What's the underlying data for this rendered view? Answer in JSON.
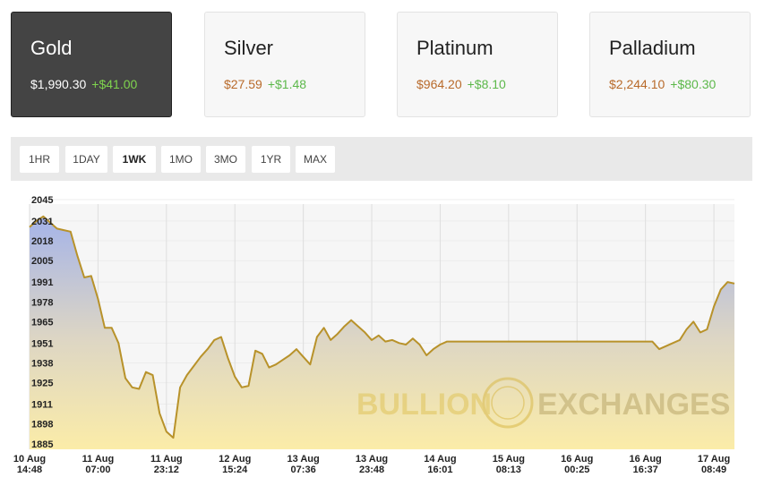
{
  "metals": [
    {
      "name": "Gold",
      "price": "$1,990.30",
      "change": "+$41.00"
    },
    {
      "name": "Silver",
      "price": "$27.59",
      "change": "+$1.48"
    },
    {
      "name": "Platinum",
      "price": "$964.20",
      "change": "+$8.10"
    },
    {
      "name": "Palladium",
      "price": "$2,244.10",
      "change": "+$80.30"
    }
  ],
  "selected_metal_index": 0,
  "ranges": [
    "1HR",
    "1DAY",
    "1WK",
    "1MO",
    "3MO",
    "1YR",
    "MAX"
  ],
  "selected_range_index": 2,
  "watermark": [
    "BULLION",
    "EXCHANGES"
  ],
  "chart_data": {
    "type": "line",
    "color": "#b8922a",
    "values": [
      2027,
      2031,
      2034,
      2030,
      2026,
      2025,
      2024,
      2008,
      1994,
      1995,
      1980,
      1961,
      1961,
      1951,
      1928,
      1922,
      1921,
      1932,
      1930,
      1905,
      1893,
      1889,
      1922,
      1930,
      1936,
      1942,
      1947,
      1953,
      1955,
      1941,
      1929,
      1922,
      1923,
      1946,
      1944,
      1935,
      1937,
      1940,
      1943,
      1947,
      1942,
      1937,
      1955,
      1961,
      1953,
      1957,
      1962,
      1966,
      1962,
      1958,
      1953,
      1956,
      1952,
      1953,
      1951,
      1950,
      1954,
      1950,
      1943,
      1947,
      1950,
      1952,
      1952,
      1952,
      1952,
      1952,
      1952,
      1952,
      1952,
      1952,
      1952,
      1952,
      1952,
      1952,
      1952,
      1952,
      1952,
      1952,
      1952,
      1952,
      1952,
      1952,
      1952,
      1952,
      1952,
      1952,
      1952,
      1952,
      1952,
      1952,
      1952,
      1952,
      1947,
      1949,
      1951,
      1953,
      1960,
      1965,
      1958,
      1960,
      1975,
      1986,
      1991,
      1990
    ],
    "xlim": [
      0,
      103
    ],
    "xticks": [
      {
        "value": 0,
        "label": "10 Aug 14:48"
      },
      {
        "value": 10,
        "label": "11 Aug 07:00"
      },
      {
        "value": 20,
        "label": "11 Aug 23:12"
      },
      {
        "value": 30,
        "label": "12 Aug 15:24"
      },
      {
        "value": 40,
        "label": "13 Aug 07:36"
      },
      {
        "value": 50,
        "label": "13 Aug 23:48"
      },
      {
        "value": 60,
        "label": "14 Aug 16:01"
      },
      {
        "value": 70,
        "label": "15 Aug 08:13"
      },
      {
        "value": 80,
        "label": "16 Aug 00:25"
      },
      {
        "value": 90,
        "label": "16 Aug 16:37"
      },
      {
        "value": 100,
        "label": "17 Aug 08:49"
      }
    ],
    "ylim": [
      1882,
      2045
    ],
    "yticks": [
      2045,
      2031,
      2018,
      2005,
      1991,
      1978,
      1965,
      1951,
      1938,
      1925,
      1911,
      1898,
      1885
    ],
    "grid": true
  }
}
